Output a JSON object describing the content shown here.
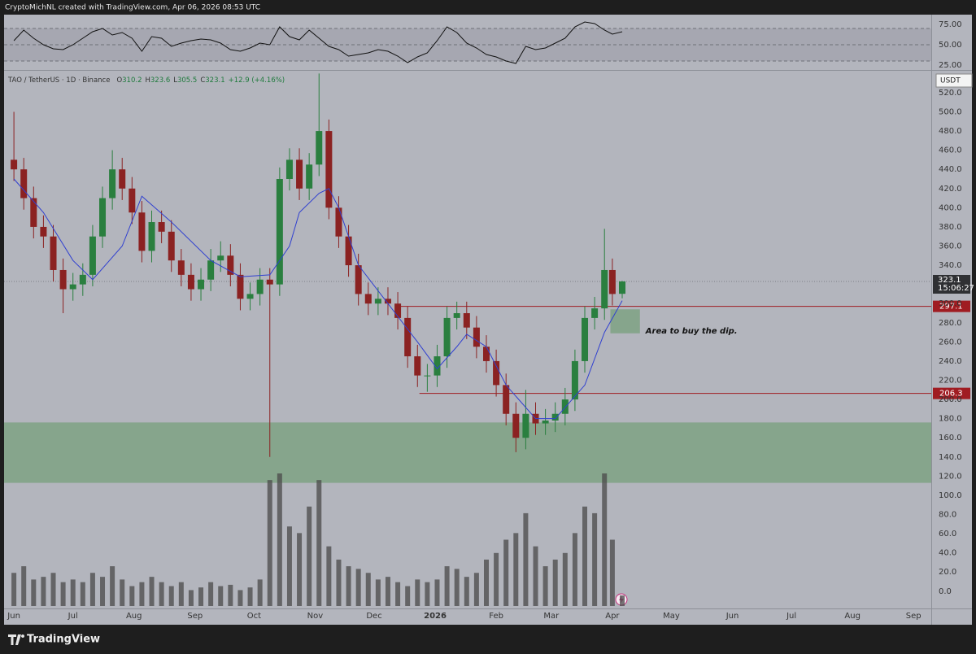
{
  "header": {
    "text": "CryptoMichNL created with TradingView.com, Apr 06, 2026 08:53 UTC"
  },
  "footer": {
    "brand": "TradingView"
  },
  "chart_data": [
    {
      "type": "candlestick",
      "title": "TAO / TetherUS · 1D · Binance",
      "currency": "USDT",
      "ohlc_labels": [
        "O",
        "H",
        "L",
        "C"
      ],
      "change_label": "+12.9 (+4.16%)",
      "countdown": "15:06:27",
      "up_color": "#2a7f3f",
      "down_color": "#8b2222",
      "x": [
        0,
        5,
        10,
        15,
        20,
        25,
        30,
        35,
        40,
        45,
        50,
        55,
        60,
        65,
        70,
        75,
        80,
        85,
        90,
        95,
        100,
        105,
        110,
        115,
        120,
        125,
        130,
        135,
        140,
        145,
        150,
        155,
        160,
        165,
        170,
        175,
        180,
        185,
        190,
        195,
        200,
        205,
        210,
        215,
        220,
        225,
        230,
        235,
        240,
        245,
        250,
        255,
        260,
        265,
        270,
        275,
        280,
        285,
        290,
        295,
        300,
        304,
        309
      ],
      "open": [
        450,
        440,
        410,
        380,
        370,
        335,
        315,
        320,
        330,
        370,
        410,
        440,
        420,
        395,
        355,
        385,
        375,
        345,
        330,
        315,
        325,
        345,
        350,
        330,
        305,
        310,
        325,
        320,
        430,
        450,
        420,
        445,
        480,
        400,
        370,
        340,
        310,
        300,
        305,
        300,
        285,
        245,
        225,
        225,
        245,
        285,
        290,
        275,
        255,
        240,
        215,
        185,
        160,
        185,
        175,
        178,
        185,
        200,
        240,
        285,
        295,
        335,
        310.2
      ],
      "high": [
        500,
        452,
        422,
        392,
        382,
        347,
        332,
        342,
        382,
        422,
        460,
        452,
        432,
        407,
        397,
        397,
        387,
        357,
        342,
        337,
        357,
        365,
        362,
        342,
        322,
        337,
        337,
        442,
        462,
        462,
        457,
        540,
        492,
        412,
        382,
        352,
        322,
        317,
        317,
        312,
        297,
        257,
        237,
        257,
        297,
        302,
        302,
        287,
        267,
        252,
        227,
        197,
        210,
        197,
        190,
        197,
        212,
        252,
        297,
        307,
        378,
        347,
        323.6
      ],
      "low": [
        428,
        398,
        368,
        358,
        323,
        290,
        303,
        308,
        318,
        358,
        398,
        408,
        383,
        343,
        343,
        363,
        333,
        318,
        303,
        303,
        313,
        333,
        318,
        293,
        293,
        298,
        140,
        308,
        418,
        408,
        408,
        433,
        388,
        358,
        328,
        298,
        288,
        288,
        288,
        273,
        233,
        213,
        208,
        213,
        233,
        273,
        263,
        243,
        228,
        203,
        173,
        145,
        148,
        163,
        163,
        166,
        173,
        188,
        228,
        273,
        283,
        298,
        305.5
      ],
      "close": [
        440,
        410,
        380,
        370,
        335,
        315,
        320,
        330,
        370,
        410,
        440,
        420,
        395,
        355,
        385,
        375,
        345,
        330,
        315,
        325,
        345,
        350,
        330,
        305,
        310,
        325,
        320,
        430,
        450,
        420,
        445,
        480,
        400,
        370,
        340,
        310,
        300,
        305,
        300,
        285,
        245,
        225,
        225,
        245,
        285,
        290,
        275,
        255,
        240,
        215,
        185,
        160,
        185,
        175,
        178,
        185,
        200,
        240,
        285,
        295,
        335,
        310,
        323.1
      ],
      "ma": {
        "color": "#3040d0",
        "x": [
          0,
          15,
          30,
          40,
          55,
          65,
          80,
          100,
          115,
          130,
          140,
          145,
          155,
          160,
          165,
          175,
          190,
          205,
          215,
          225,
          230,
          240,
          250,
          265,
          275,
          290,
          300,
          309
        ],
        "values": [
          430,
          395,
          345,
          325,
          360,
          412,
          385,
          345,
          328,
          330,
          360,
          395,
          415,
          420,
          400,
          340,
          300,
          260,
          232,
          255,
          268,
          255,
          215,
          180,
          180,
          215,
          270,
          303
        ]
      },
      "volume": {
        "color": "#4a4a4a",
        "ylim": [
          0,
          100
        ],
        "values": [
          25,
          30,
          20,
          22,
          25,
          18,
          20,
          18,
          25,
          22,
          30,
          20,
          15,
          18,
          22,
          18,
          15,
          18,
          12,
          14,
          18,
          15,
          16,
          12,
          14,
          20,
          95,
          100,
          60,
          55,
          75,
          95,
          45,
          35,
          30,
          28,
          25,
          20,
          22,
          18,
          15,
          20,
          18,
          20,
          30,
          28,
          22,
          25,
          35,
          40,
          50,
          55,
          70,
          45,
          30,
          35,
          40,
          55,
          75,
          70,
          100,
          50,
          8
        ]
      },
      "levels": [
        {
          "value": 297.1,
          "x_start": 195,
          "color": "#a01c22"
        },
        {
          "value": 206.3,
          "x_start": 206,
          "color": "#a01c22"
        }
      ],
      "zones": [
        {
          "low": 113,
          "high": 176,
          "x": [
            -5,
            466
          ],
          "color": "#7ea284"
        },
        {
          "low": 269,
          "high": 294,
          "x": [
            303,
            318
          ],
          "color": "#7ea284",
          "label": "Area to buy the dip."
        }
      ],
      "xlim": [
        -5,
        466
      ],
      "ylim": [
        -18,
        542
      ],
      "xticks": [
        {
          "value": 0,
          "label": "Jun"
        },
        {
          "value": 30,
          "label": "Jul"
        },
        {
          "value": 61,
          "label": "Aug"
        },
        {
          "value": 92,
          "label": "Sep"
        },
        {
          "value": 122,
          "label": "Oct"
        },
        {
          "value": 153,
          "label": "Nov"
        },
        {
          "value": 183,
          "label": "Dec"
        },
        {
          "value": 214,
          "label": "2026"
        },
        {
          "value": 245,
          "label": "Feb"
        },
        {
          "value": 273,
          "label": "Mar"
        },
        {
          "value": 304,
          "label": "Apr"
        },
        {
          "value": 334,
          "label": "May"
        },
        {
          "value": 365,
          "label": "Jun"
        },
        {
          "value": 395,
          "label": "Jul"
        },
        {
          "value": 426,
          "label": "Aug"
        },
        {
          "value": 457,
          "label": "Sep"
        }
      ],
      "yticks": [
        {
          "value": 0,
          "label": "0.0"
        },
        {
          "value": 20,
          "label": "20.0"
        },
        {
          "value": 40,
          "label": "40.0"
        },
        {
          "value": 60,
          "label": "60.0"
        },
        {
          "value": 80,
          "label": "80.0"
        },
        {
          "value": 100,
          "label": "100.0"
        },
        {
          "value": 120,
          "label": "120.0"
        },
        {
          "value": 140,
          "label": "140.0"
        },
        {
          "value": 160,
          "label": "160.0"
        },
        {
          "value": 180,
          "label": "180.0"
        },
        {
          "value": 200,
          "label": "200.0"
        },
        {
          "value": 220,
          "label": "220.0"
        },
        {
          "value": 240,
          "label": "240.0"
        },
        {
          "value": 260,
          "label": "260.0"
        },
        {
          "value": 280,
          "label": "280.0"
        },
        {
          "value": 300,
          "label": "300.0"
        },
        {
          "value": 320,
          "label": "320.0"
        },
        {
          "value": 340,
          "label": "340.0"
        },
        {
          "value": 360,
          "label": "360.0"
        },
        {
          "value": 380,
          "label": "380.0"
        },
        {
          "value": 400,
          "label": "400.0"
        },
        {
          "value": 420,
          "label": "420.0"
        },
        {
          "value": 440,
          "label": "440.0"
        },
        {
          "value": 460,
          "label": "460.0"
        },
        {
          "value": 480,
          "label": "480.0"
        },
        {
          "value": 500,
          "label": "500.0"
        },
        {
          "value": 520,
          "label": "520.0"
        }
      ]
    },
    {
      "type": "line",
      "color": "#111111",
      "band": [
        30,
        70
      ],
      "x": [
        0,
        5,
        10,
        15,
        20,
        25,
        30,
        35,
        40,
        45,
        50,
        55,
        60,
        65,
        70,
        75,
        80,
        85,
        90,
        95,
        100,
        105,
        110,
        115,
        120,
        125,
        130,
        135,
        140,
        145,
        150,
        155,
        160,
        165,
        170,
        175,
        180,
        185,
        190,
        195,
        200,
        205,
        210,
        215,
        220,
        225,
        230,
        235,
        240,
        245,
        250,
        255,
        260,
        265,
        270,
        275,
        280,
        285,
        290,
        295,
        300,
        304,
        309
      ],
      "values": [
        55,
        68,
        58,
        50,
        45,
        44,
        50,
        58,
        66,
        70,
        62,
        65,
        58,
        42,
        60,
        58,
        48,
        52,
        55,
        57,
        56,
        52,
        44,
        42,
        46,
        52,
        50,
        72,
        60,
        56,
        68,
        58,
        48,
        44,
        36,
        38,
        40,
        44,
        42,
        36,
        28,
        35,
        40,
        55,
        72,
        65,
        52,
        46,
        38,
        35,
        30,
        27,
        48,
        44,
        46,
        52,
        58,
        72,
        78,
        76,
        68,
        63,
        66
      ],
      "xlim": [
        -5,
        466
      ],
      "ylim": [
        19,
        85
      ],
      "yticks": [
        {
          "value": 25,
          "label": "25.00"
        },
        {
          "value": 50,
          "label": "50.00"
        },
        {
          "value": 75,
          "label": "75.00"
        }
      ]
    }
  ]
}
